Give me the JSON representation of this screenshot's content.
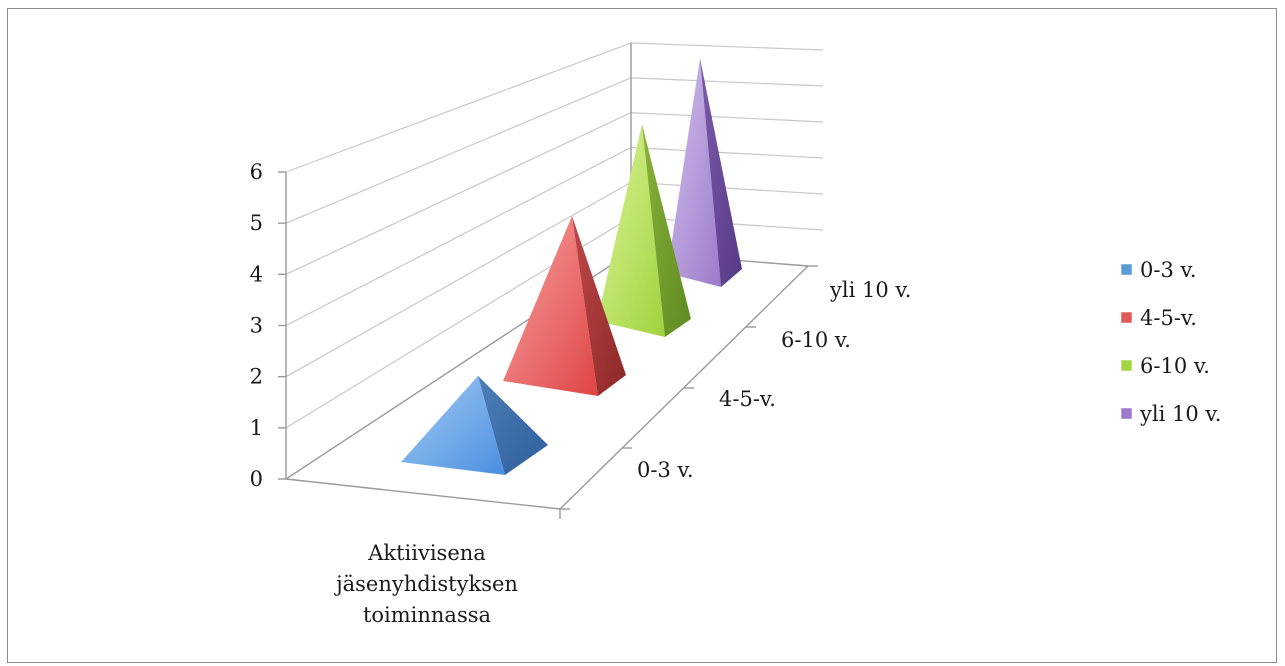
{
  "chart_data": {
    "type": "bar",
    "style": "3d-pyramid",
    "title": "",
    "categories": [
      "Aktiivisena jäsenyhdistyksen toiminnassa"
    ],
    "category_label_lines": [
      "Aktiivisena",
      "jäsenyhdistyksen",
      "toiminnassa"
    ],
    "series": [
      {
        "name": "0-3 v.",
        "values": [
          2
        ],
        "color": "#5b9bd5"
      },
      {
        "name": "4-5-v.",
        "values": [
          4.5
        ],
        "color": "#e05a5a"
      },
      {
        "name": "6-10 v.",
        "values": [
          5.5
        ],
        "color": "#a3d646"
      },
      {
        "name": "yli 10 v.",
        "values": [
          6
        ],
        "color": "#9b7bc9"
      }
    ],
    "y_ticks": [
      "0",
      "1",
      "2",
      "3",
      "4",
      "5",
      "6"
    ],
    "depth_labels": [
      "0-3 v.",
      "4-5-v.",
      "6-10 v.",
      "yli 10 v."
    ],
    "ylim": [
      0,
      6
    ],
    "grid": true,
    "legend_position": "right"
  }
}
